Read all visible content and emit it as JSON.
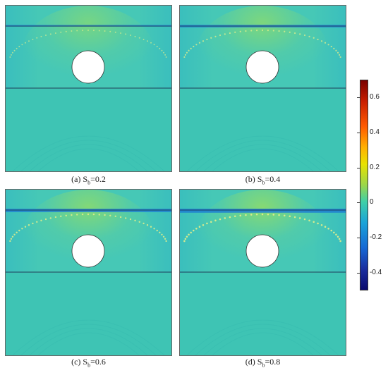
{
  "panels": [
    {
      "letter": "(a) S",
      "sub": "b",
      "value": "=0.2",
      "band_strength": 0.35
    },
    {
      "letter": "(b) S",
      "sub": "b",
      "value": "=0.4",
      "band_strength": 0.6
    },
    {
      "letter": "(c) S",
      "sub": "b",
      "value": "=0.6",
      "band_strength": 0.8
    },
    {
      "letter": "(d) S",
      "sub": "b",
      "value": "=0.8",
      "band_strength": 0.95
    }
  ],
  "colorbar": {
    "ticks": [
      "0.6",
      "0.4",
      "0.2",
      "0",
      "-0.2",
      "-0.4"
    ],
    "tick_values": [
      0.6,
      0.4,
      0.2,
      0,
      -0.2,
      -0.4
    ],
    "range": [
      -0.5,
      0.7
    ]
  },
  "colors": {
    "background_field": "#3ec4b4",
    "upper_field": "#46c8b6",
    "arch": "#8fdc6a",
    "band": "#1f7fd0",
    "top_blue": "#2a6fd6"
  }
}
